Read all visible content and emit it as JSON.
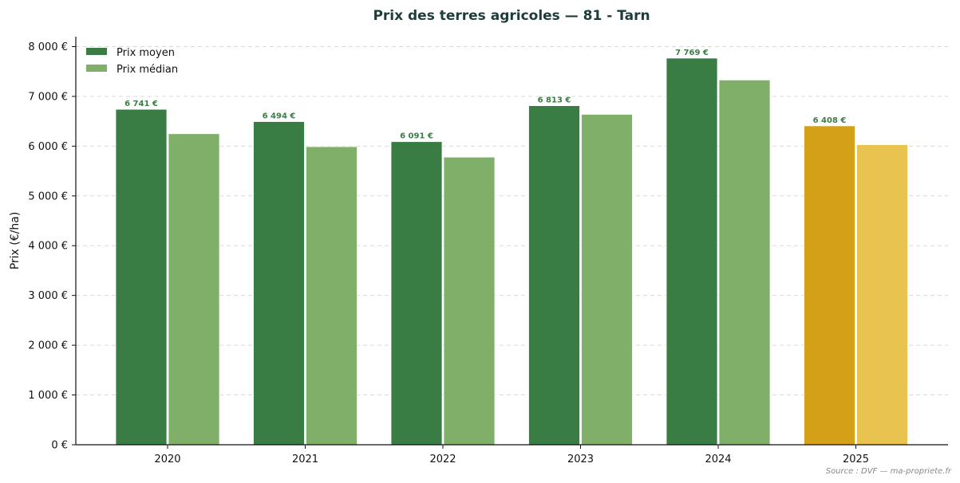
{
  "chart_data": {
    "type": "bar",
    "title": "Prix des terres agricoles — 81 - Tarn",
    "xlabel": "",
    "ylabel": "Prix (€/ha)",
    "ylim": [
      0,
      8200
    ],
    "yticks": [
      0,
      1000,
      2000,
      3000,
      4000,
      5000,
      6000,
      7000,
      8000
    ],
    "ytick_labels": [
      "0 €",
      "1 000 €",
      "2 000 €",
      "3 000 €",
      "4 000 €",
      "5 000 €",
      "6 000 €",
      "7 000 €",
      "8 000 €"
    ],
    "categories": [
      "2020",
      "2021",
      "2022",
      "2023",
      "2024",
      "2025"
    ],
    "series": [
      {
        "name": "Prix moyen",
        "values": [
          6741,
          6494,
          6091,
          6813,
          7769,
          6408
        ],
        "data_labels": [
          "6 741 €",
          "6 494 €",
          "6 091 €",
          "6 813 €",
          "7 769 €",
          "6 408 €"
        ]
      },
      {
        "name": "Prix médian",
        "values": [
          6250,
          5990,
          5780,
          6640,
          7330,
          6030
        ]
      }
    ],
    "colors": {
      "moyen": "#3a7d44",
      "median": "#7faf69",
      "moyen_highlight": "#d4a017",
      "median_highlight": "#e8c350"
    },
    "highlight_category": "2025",
    "legend_position": "top-left",
    "grid": "y-dashed",
    "source": "Source : DVF — ma-propriete.fr"
  }
}
